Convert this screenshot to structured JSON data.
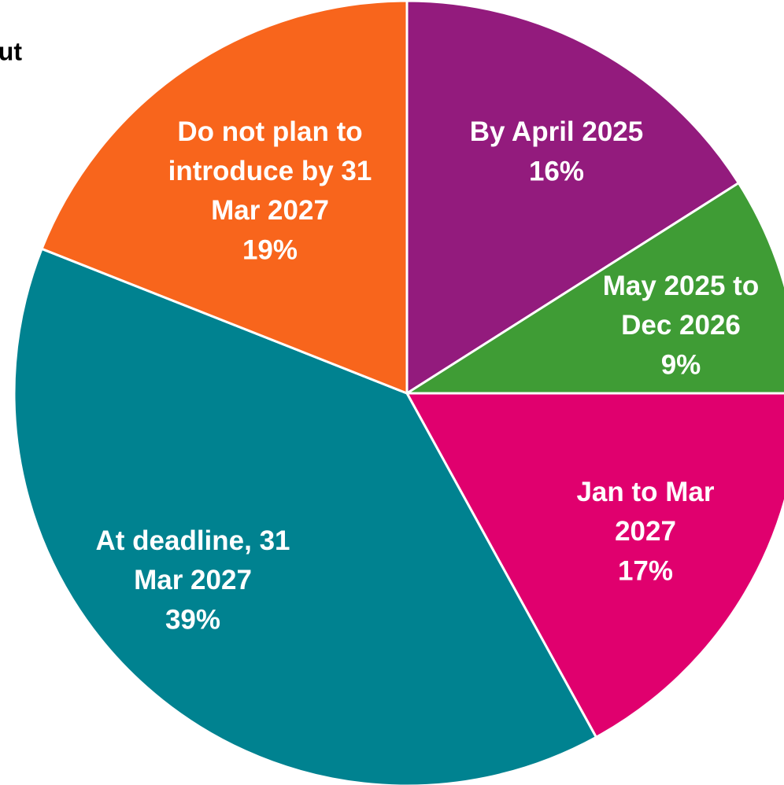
{
  "chart_data": {
    "type": "pie",
    "title": "ut",
    "categories": [
      "By April 2025",
      "May 2025 to Dec 2026",
      "Jan to Mar 2027",
      "At deadline, 31 Mar 2027",
      "Do not plan to introduce by 31 Mar 2027"
    ],
    "values": [
      16,
      9,
      17,
      39,
      19
    ],
    "value_labels": [
      "16%",
      "9%",
      "17%",
      "39%",
      "19%"
    ],
    "colors": [
      "#931b7d",
      "#3f9c35",
      "#e0006e",
      "#008290",
      "#f8651c"
    ]
  }
}
